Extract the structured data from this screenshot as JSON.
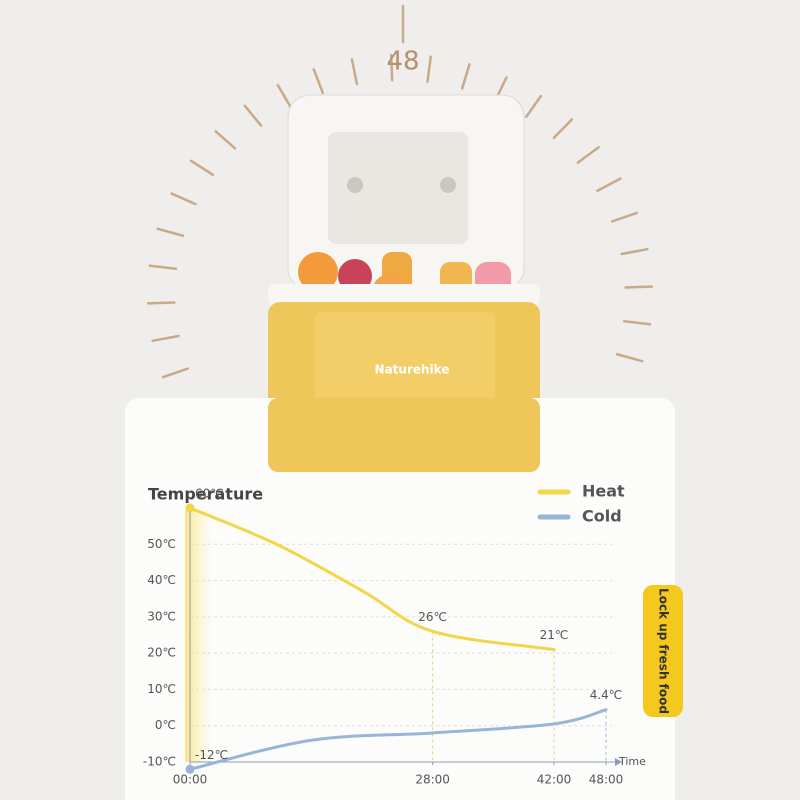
{
  "dial_label": "48",
  "brand": "Naturehike",
  "side_tab": "Lock up fresh food",
  "chart_data": {
    "type": "line",
    "ylabel": "Temperature",
    "xlabel": "Time",
    "xlim": [
      0,
      48
    ],
    "ylim": [
      -10,
      60
    ],
    "xticks": [
      {
        "value": 0,
        "label": "00:00"
      },
      {
        "value": 28,
        "label": "28:00"
      },
      {
        "value": 42,
        "label": "42:00"
      },
      {
        "value": 48,
        "label": "48:00"
      }
    ],
    "yticks": [
      {
        "value": -10,
        "label": "-10℃"
      },
      {
        "value": 0,
        "label": "0℃"
      },
      {
        "value": 10,
        "label": "10℃"
      },
      {
        "value": 20,
        "label": "20℃"
      },
      {
        "value": 30,
        "label": "30℃"
      },
      {
        "value": 40,
        "label": "40℃"
      },
      {
        "value": 50,
        "label": "50℃"
      }
    ],
    "grid": true,
    "legend": "upper right",
    "series": [
      {
        "name": "Heat",
        "color": "#f2d64a",
        "x": [
          0,
          10,
          20,
          28,
          42
        ],
        "values": [
          60,
          50,
          37,
          26,
          21
        ],
        "value_labels": [
          "60℃",
          null,
          null,
          "26℃",
          "21℃"
        ]
      },
      {
        "name": "Cold",
        "color": "#9ab4d8",
        "x": [
          0,
          14,
          28,
          42,
          48
        ],
        "values": [
          -12,
          -4,
          -2,
          0.5,
          4.4
        ],
        "value_labels": [
          "-12℃",
          null,
          null,
          null,
          "4.4℃"
        ]
      }
    ]
  }
}
